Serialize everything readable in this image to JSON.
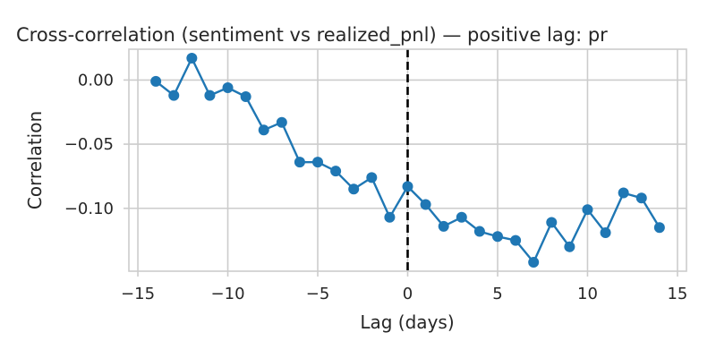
{
  "chart_data": {
    "type": "line",
    "title": "Cross-correlation (sentiment vs realized_pnl) — positive lag: pr",
    "xlabel": "Lag (days)",
    "ylabel": "Correlation",
    "xlim": [
      -15.5,
      15.5
    ],
    "ylim": [
      -0.149,
      0.024
    ],
    "x_ticks": [
      -15,
      -10,
      -5,
      0,
      5,
      10,
      15
    ],
    "x_tick_labels": [
      "−15",
      "−10",
      "−5",
      "0",
      "5",
      "10",
      "15"
    ],
    "y_ticks": [
      0.0,
      -0.05,
      -0.1
    ],
    "y_tick_labels": [
      "0.00",
      "−0.05",
      "−0.10"
    ],
    "grid": true,
    "reference_line": {
      "x": 0,
      "style": "dashed",
      "color": "#000000"
    },
    "series": [
      {
        "color": "#1f77b4",
        "marker": "circle",
        "x": [
          -14,
          -13,
          -12,
          -11,
          -10,
          -9,
          -8,
          -7,
          -6,
          -5,
          -4,
          -3,
          -2,
          -1,
          0,
          1,
          2,
          3,
          4,
          5,
          6,
          7,
          8,
          9,
          10,
          11,
          12,
          13,
          14
        ],
        "y": [
          -0.001,
          -0.012,
          0.017,
          -0.012,
          -0.006,
          -0.013,
          -0.039,
          -0.033,
          -0.064,
          -0.064,
          -0.071,
          -0.085,
          -0.076,
          -0.107,
          -0.083,
          -0.097,
          -0.114,
          -0.107,
          -0.118,
          -0.122,
          -0.125,
          -0.142,
          -0.111,
          -0.13,
          -0.101,
          -0.119,
          -0.088,
          -0.092,
          -0.115
        ]
      }
    ]
  }
}
